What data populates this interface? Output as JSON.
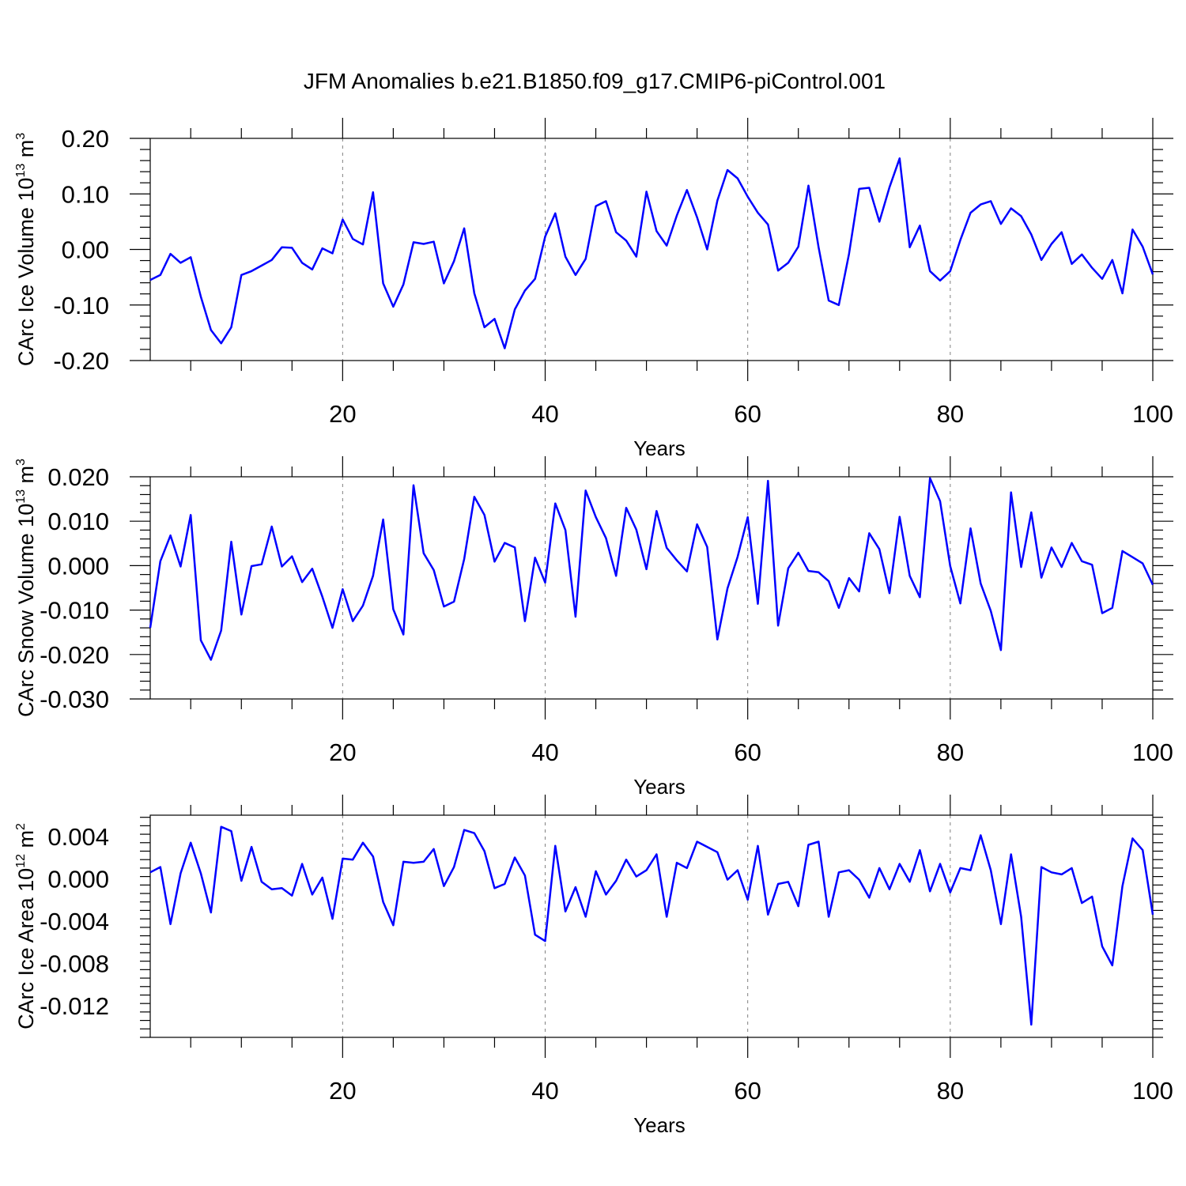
{
  "colors": {
    "series": "#0000ff",
    "axes": "#000000",
    "grid": "#808080"
  },
  "title": "JFM Anomalies b.e21.B1850.f09_g17.CMIP6-piControl.001",
  "chart_data": [
    {
      "type": "line",
      "title": "JFM Anomalies b.e21.B1850.f09_g17.CMIP6-piControl.001",
      "xlabel": "Years",
      "ylabel_main": "CArc Ice Volume 10",
      "ylabel_exp1": "13",
      "ylabel_mid": " m",
      "ylabel_exp2": "3",
      "xlim": [
        1,
        100
      ],
      "ylim": [
        -0.2,
        0.2
      ],
      "xticks": [
        20,
        40,
        60,
        80,
        100
      ],
      "xtick_labels": [
        "20",
        "40",
        "60",
        "80",
        "100"
      ],
      "yticks": [
        -0.2,
        -0.1,
        0.0,
        0.1,
        0.2
      ],
      "ytick_labels": [
        "-0.20",
        "-0.10",
        "0.00",
        "0.10",
        "0.20"
      ],
      "grid_x": [
        20,
        40,
        60,
        80
      ],
      "series": [
        {
          "name": "ice_volume",
          "values": [
            -0.055,
            -0.046,
            -0.008,
            -0.024,
            -0.014,
            -0.085,
            -0.145,
            -0.169,
            -0.14,
            -0.046,
            -0.039,
            -0.029,
            -0.019,
            0.004,
            0.003,
            -0.024,
            -0.036,
            0.002,
            -0.007,
            0.054,
            0.019,
            0.009,
            0.103,
            -0.061,
            -0.103,
            -0.063,
            0.013,
            0.01,
            0.014,
            -0.061,
            -0.021,
            0.038,
            -0.079,
            -0.14,
            -0.125,
            -0.178,
            -0.108,
            -0.074,
            -0.053,
            0.023,
            0.065,
            -0.013,
            -0.046,
            -0.017,
            0.078,
            0.087,
            0.031,
            0.016,
            -0.013,
            0.104,
            0.033,
            0.007,
            0.061,
            0.107,
            0.058,
            0.0,
            0.088,
            0.143,
            0.128,
            0.095,
            0.066,
            0.045,
            -0.038,
            -0.024,
            0.005,
            0.115,
            0.004,
            -0.092,
            -0.1,
            -0.008,
            0.109,
            0.111,
            0.05,
            0.112,
            0.164,
            0.004,
            0.043,
            -0.039,
            -0.056,
            -0.039,
            0.017,
            0.066,
            0.081,
            0.087,
            0.046,
            0.074,
            0.06,
            0.027,
            -0.019,
            0.01,
            0.031,
            -0.026,
            -0.009,
            -0.033,
            -0.053,
            -0.019,
            -0.079,
            0.036,
            0.005,
            -0.045
          ]
        }
      ]
    },
    {
      "type": "line",
      "xlabel": "Years",
      "ylabel_main": "CArc Snow Volume 10",
      "ylabel_exp1": "13",
      "ylabel_mid": " m",
      "ylabel_exp2": "3",
      "xlim": [
        1,
        100
      ],
      "ylim": [
        -0.03,
        0.02
      ],
      "xticks": [
        20,
        40,
        60,
        80,
        100
      ],
      "xtick_labels": [
        "20",
        "40",
        "60",
        "80",
        "100"
      ],
      "yticks": [
        -0.03,
        -0.02,
        -0.01,
        0.0,
        0.01,
        0.02
      ],
      "ytick_labels": [
        "-0.030",
        "-0.020",
        "-0.010",
        "0.000",
        "0.010",
        "0.020"
      ],
      "grid_x": [
        20,
        40,
        60,
        80
      ],
      "series": [
        {
          "name": "snow_volume",
          "values": [
            -0.014,
            0.001,
            0.0068,
            -0.0002,
            0.0114,
            -0.0168,
            -0.0212,
            -0.0146,
            0.0054,
            -0.011,
            -0.0001,
            0.0003,
            0.0088,
            -0.0002,
            0.0021,
            -0.0037,
            -0.0007,
            -0.007,
            -0.014,
            -0.0053,
            -0.0125,
            -0.009,
            -0.0023,
            0.0104,
            -0.0098,
            -0.0155,
            0.0181,
            0.0028,
            -0.001,
            -0.0092,
            -0.0081,
            0.0015,
            0.0155,
            0.0114,
            0.0009,
            0.0051,
            0.0041,
            -0.0125,
            0.0018,
            -0.0038,
            0.014,
            0.008,
            -0.0115,
            0.0169,
            0.0109,
            0.0062,
            -0.0023,
            0.013,
            0.0081,
            -0.0008,
            0.0123,
            0.004,
            0.0012,
            -0.0013,
            0.0093,
            0.0042,
            -0.0166,
            -0.0051,
            0.002,
            0.0109,
            -0.0086,
            0.0191,
            -0.0135,
            -0.0006,
            0.0029,
            -0.0012,
            -0.0015,
            -0.0035,
            -0.0095,
            -0.0028,
            -0.0058,
            0.0073,
            0.0037,
            -0.0062,
            0.011,
            -0.0023,
            -0.0071,
            0.0197,
            0.0145,
            -0.0001,
            -0.0085,
            0.0084,
            -0.004,
            -0.0102,
            -0.019,
            0.0165,
            -0.0003,
            0.012,
            -0.0027,
            0.0041,
            -0.0003,
            0.0051,
            0.001,
            0.0002,
            -0.0107,
            -0.0095,
            0.0033,
            0.0019,
            0.0005,
            -0.0043
          ]
        }
      ]
    },
    {
      "type": "line",
      "xlabel": "Years",
      "ylabel_main": "CArc Ice Area 10",
      "ylabel_exp1": "12",
      "ylabel_mid": " m",
      "ylabel_exp2": "2",
      "xlim": [
        1,
        100
      ],
      "ylim": [
        -0.015,
        0.006
      ],
      "xticks": [
        20,
        40,
        60,
        80,
        100
      ],
      "xtick_labels": [
        "20",
        "40",
        "60",
        "80",
        "100"
      ],
      "yticks": [
        -0.012,
        -0.008,
        -0.004,
        0.0,
        0.004
      ],
      "ytick_labels": [
        "-0.012",
        "-0.008",
        "-0.004",
        "0.000",
        "0.004"
      ],
      "grid_x": [
        20,
        40,
        60,
        80
      ],
      "series": [
        {
          "name": "ice_area",
          "values": [
            0.0006,
            0.0011,
            -0.0043,
            0.0005,
            0.0034,
            0.0005,
            -0.0032,
            0.0049,
            0.0045,
            -0.0002,
            0.003,
            -0.0003,
            -0.001,
            -0.0009,
            -0.0016,
            0.0014,
            -0.0015,
            0.0001,
            -0.0038,
            0.0019,
            0.0018,
            0.0034,
            0.0021,
            -0.0022,
            -0.0044,
            0.0016,
            0.0015,
            0.0016,
            0.0028,
            -0.0007,
            0.0011,
            0.0046,
            0.0043,
            0.0026,
            -0.0009,
            -0.0005,
            0.002,
            0.0003,
            -0.0053,
            -0.0059,
            0.0031,
            -0.0031,
            -0.0008,
            -0.0036,
            0.0007,
            -0.0015,
            -0.0002,
            0.0018,
            0.0002,
            0.0008,
            0.0023,
            -0.0036,
            0.0015,
            0.001,
            0.0035,
            0.003,
            0.0025,
            -0.0001,
            0.0008,
            -0.002,
            0.0031,
            -0.0034,
            -0.0005,
            -0.0003,
            -0.0026,
            0.0032,
            0.0035,
            -0.0036,
            0.0006,
            0.0008,
            -0.0001,
            -0.0018,
            0.001,
            -0.001,
            0.0014,
            -0.0003,
            0.0027,
            -0.0012,
            0.0014,
            -0.0013,
            0.001,
            0.0008,
            0.0041,
            0.0008,
            -0.0043,
            0.0023,
            -0.0036,
            -0.0138,
            0.0011,
            0.0006,
            0.0004,
            0.001,
            -0.0023,
            -0.0017,
            -0.0064,
            -0.0082,
            -0.0007,
            0.0038,
            0.0027,
            -0.0034
          ]
        }
      ]
    }
  ]
}
